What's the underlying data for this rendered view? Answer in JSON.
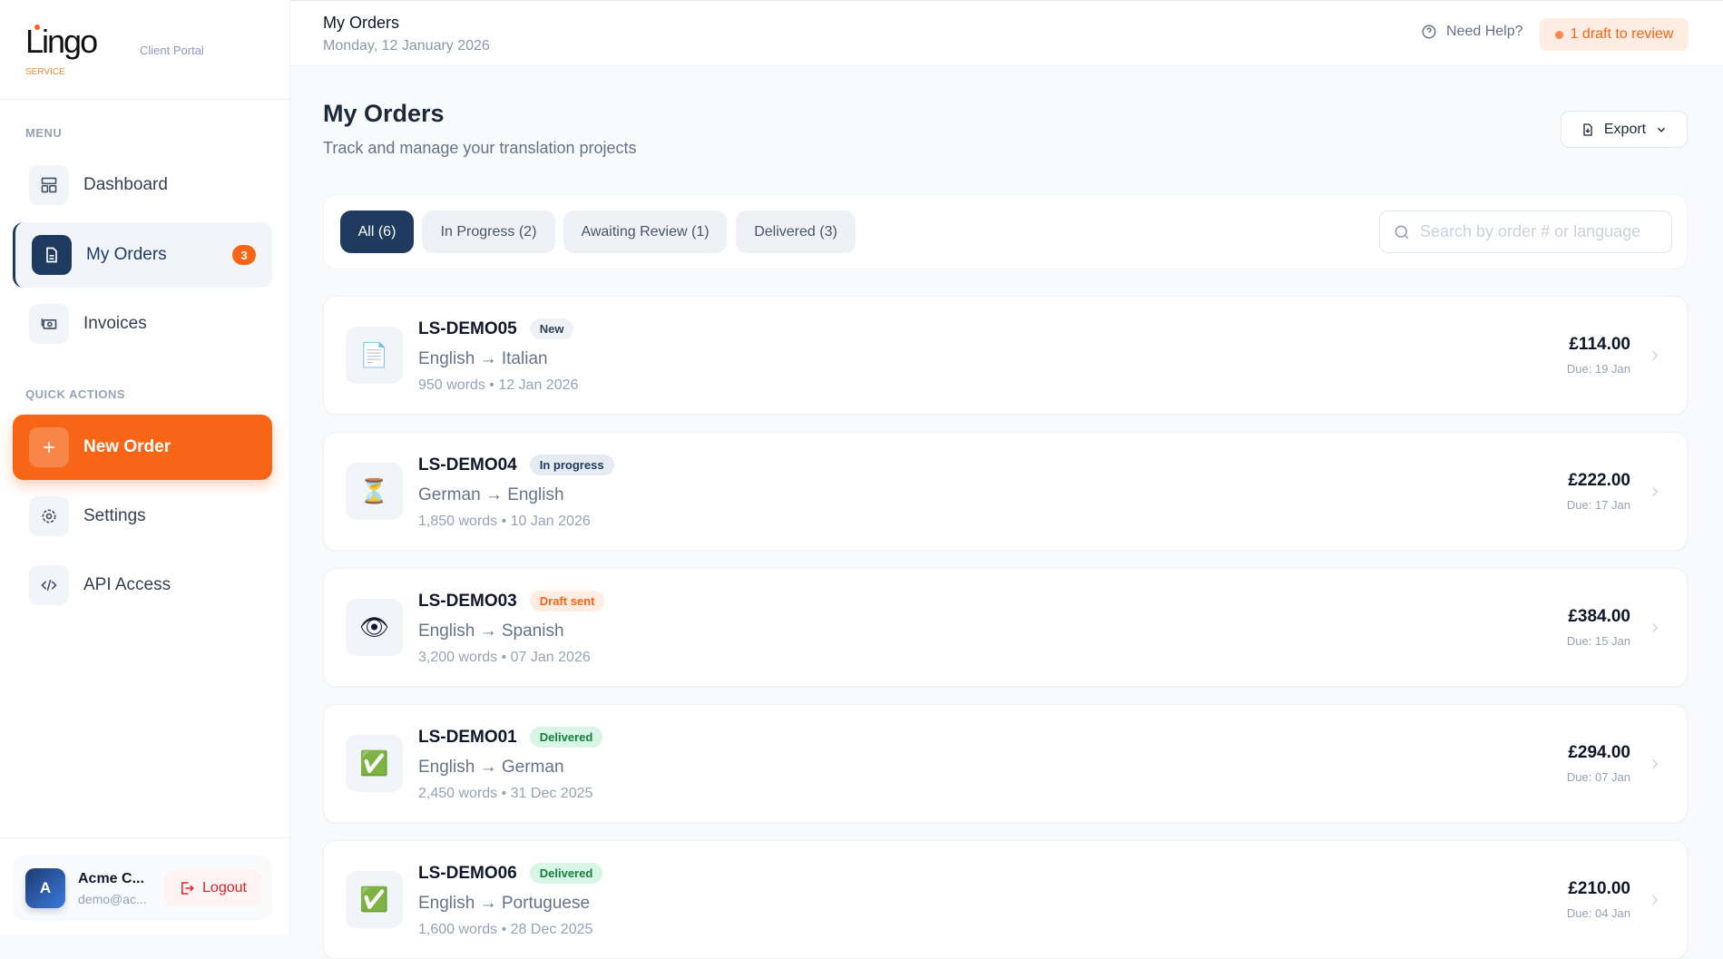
{
  "brand": {
    "logo_text": "Lingo",
    "logo_sub": "SERVICE",
    "portal": "Client Portal"
  },
  "sidebar": {
    "menu_label": "MENU",
    "items": [
      {
        "label": "Dashboard",
        "icon": "layout-icon"
      },
      {
        "label": "My Orders",
        "icon": "document-icon",
        "badge": "3"
      },
      {
        "label": "Invoices",
        "icon": "banknote-icon"
      }
    ],
    "quick_label": "QUICK ACTIONS",
    "quick": [
      {
        "label": "New Order",
        "icon": "plus-icon"
      },
      {
        "label": "Settings",
        "icon": "gear-icon"
      },
      {
        "label": "API Access",
        "icon": "code-icon"
      }
    ]
  },
  "user": {
    "initial": "A",
    "name": "Acme C...",
    "email": "demo@ac...",
    "logout": "Logout"
  },
  "topbar": {
    "title": "My Orders",
    "date": "Monday, 12 January 2026",
    "help": "Need Help?",
    "draft_notice": "1 draft to review"
  },
  "page": {
    "title": "My Orders",
    "subtitle": "Track and manage your translation projects",
    "export": "Export"
  },
  "filters": {
    "tabs": [
      "All (6)",
      "In Progress (2)",
      "Awaiting Review (1)",
      "Delivered (3)"
    ],
    "active": "All (6)",
    "search_placeholder": "Search by order # or language"
  },
  "colors": {
    "accent": "#f76516",
    "navy": "#1e3a5f"
  },
  "orders": [
    {
      "id": "LS-DEMO05",
      "status": "New",
      "pair": "English → Italian",
      "meta": "950 words • 12 Jan 2026",
      "price": "£114.00",
      "due": "Due: 19 Jan",
      "icon": "📄"
    },
    {
      "id": "LS-DEMO04",
      "status": "In progress",
      "pair": "German → English",
      "meta": "1,850 words • 10 Jan 2026",
      "price": "£222.00",
      "due": "Due: 17 Jan",
      "icon": "⏳"
    },
    {
      "id": "LS-DEMO03",
      "status": "Draft sent",
      "pair": "English → Spanish",
      "meta": "3,200 words • 07 Jan 2026",
      "price": "£384.00",
      "due": "Due: 15 Jan",
      "icon": "👁"
    },
    {
      "id": "LS-DEMO01",
      "status": "Delivered",
      "pair": "English → German",
      "meta": "2,450 words • 31 Dec 2025",
      "price": "£294.00",
      "due": "Due: 07 Jan",
      "icon": "✅"
    },
    {
      "id": "LS-DEMO06",
      "status": "Delivered",
      "pair": "English → Portuguese",
      "meta": "1,600 words • 28 Dec 2025",
      "price": "£210.00",
      "due": "Due: 04 Jan",
      "icon": "✅"
    }
  ]
}
